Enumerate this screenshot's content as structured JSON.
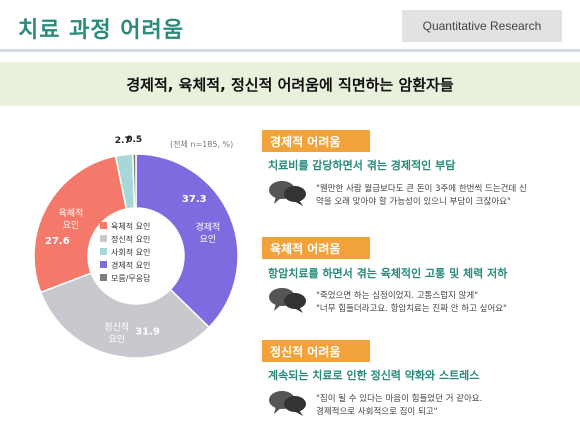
{
  "header": {
    "title": "치료 과정 어려움",
    "tag": "Quantitative Research"
  },
  "banner": "경제적, 육체적, 정신적 어려움에 직면하는 암환자들",
  "colors": {
    "teal": "#2a8a7b",
    "orange": "#f1a23a"
  },
  "chart_data": {
    "type": "pie",
    "note": "(전체 n=185, %)",
    "slices": [
      {
        "legend": "육체적 요인",
        "value": 27.6,
        "color": "#f4796b",
        "label": "육체적\n요인"
      },
      {
        "legend": "정신적 요인",
        "value": 31.9,
        "color": "#c8c8cf",
        "label": "정신적\n요인"
      },
      {
        "legend": "사회적 요인",
        "value": 2.7,
        "color": "#a8d7d7",
        "label": ""
      },
      {
        "legend": "경제적 요인",
        "value": 37.3,
        "color": "#7e6be0",
        "label": "경제적\n요인"
      },
      {
        "legend": "모름/무응답",
        "value": 0.5,
        "color": "#7e7e7e",
        "label": ""
      }
    ]
  },
  "sections": [
    {
      "header": "경제적 어려움",
      "sub": "치료비를 감당하면서 겪는 경제적인 부담",
      "quote": "\"웬만한 사람 월급보다도 큰 돈이 3주에 한번씩 드는건데 신\n약을 오래 맞아야 할 가능성이 있으니 부담이 크잖아요\""
    },
    {
      "header": "육체적 어려움",
      "sub": "항암치료를 하면서 겪는 육체적인 고통 및 체력 저하",
      "quote": "\"죽었으면 하는 심정이었지. 고통스럽지 않게\"\n\"너무 힘들더라고요. 항암치료는 진짜 안 하고 싶어요\""
    },
    {
      "header": "정신적 어려움",
      "sub": "계속되는 치료로 인한 정신력 약화와 스트레스",
      "quote": "\"짐이 될 수 있다는 마음이 힘들었던 거 같아요.\n경제적으로 사회적으로 짐이 되고\""
    }
  ]
}
